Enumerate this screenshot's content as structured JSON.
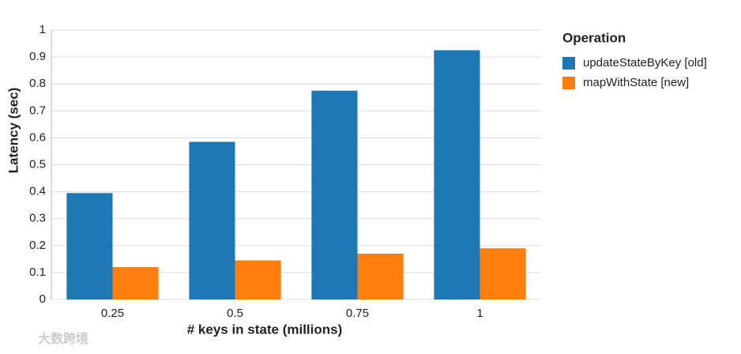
{
  "chart_data": {
    "type": "bar",
    "categories": [
      "0.25",
      "0.5",
      "0.75",
      "1"
    ],
    "series": [
      {
        "name": "updateStateByKey [old]",
        "color": "#1f77b4",
        "values": [
          0.395,
          0.585,
          0.775,
          0.925
        ]
      },
      {
        "name": "mapWithState [new]",
        "color": "#ff7f0e",
        "values": [
          0.12,
          0.145,
          0.17,
          0.19
        ]
      }
    ],
    "x_label": "# keys in state (millions)",
    "y_label": "Latency (sec)",
    "legend_title": "Operation",
    "ylim": [
      0,
      1
    ],
    "yticks": [
      0,
      0.1,
      0.2,
      0.3,
      0.4,
      0.5,
      0.6,
      0.7,
      0.8,
      0.9,
      1
    ],
    "grid": true,
    "legend_position": "right"
  },
  "watermark": "大数跨境"
}
